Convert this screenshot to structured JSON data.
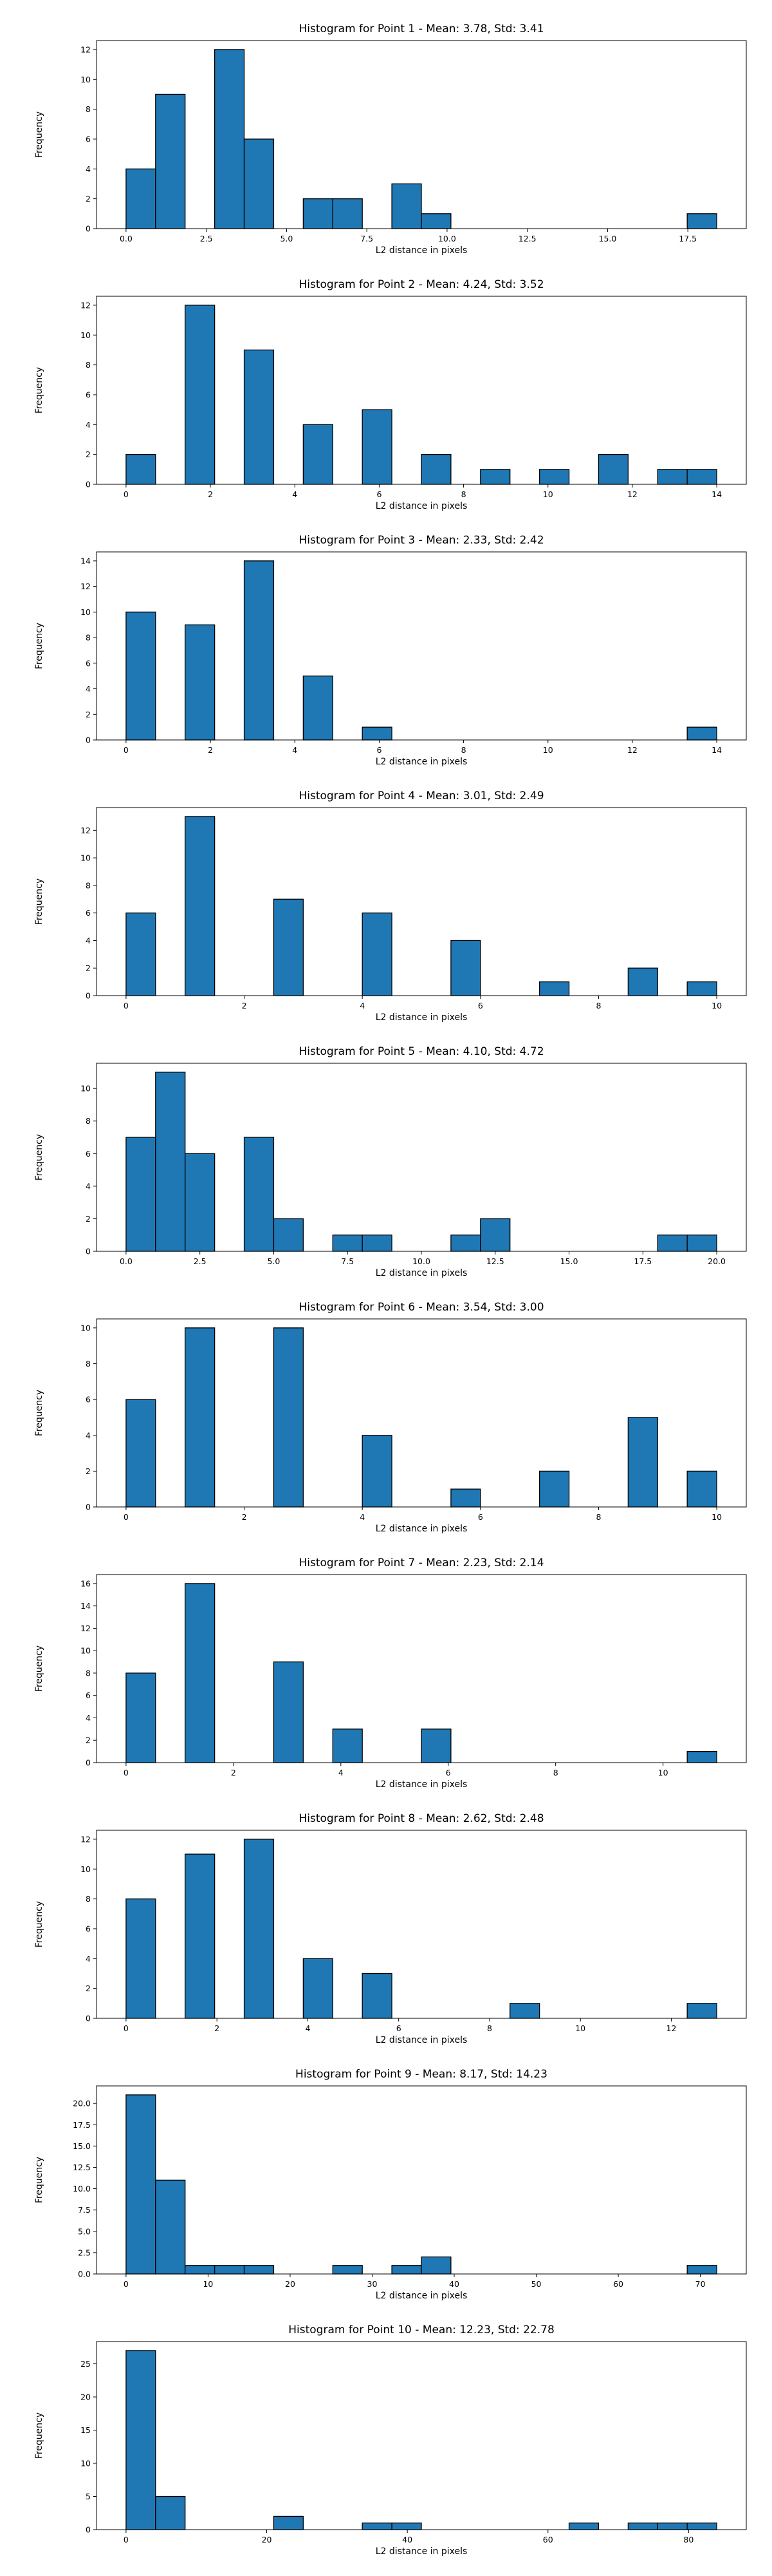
{
  "chart_data": [
    {
      "type": "bar",
      "title": "Histogram for Point 1 - Mean: 3.78, Std: 3.41",
      "xlabel": "L2 distance in pixels",
      "ylabel": "Frequency",
      "bin_edges": [
        0.0,
        0.92,
        1.84,
        2.76,
        3.68,
        4.6,
        5.52,
        6.44,
        7.36,
        8.28,
        9.2,
        10.12,
        11.04,
        11.96,
        12.88,
        13.8,
        14.72,
        15.64,
        16.56,
        17.48,
        18.4
      ],
      "values": [
        4,
        9,
        0,
        12,
        6,
        0,
        2,
        2,
        0,
        3,
        1,
        0,
        0,
        0,
        0,
        0,
        0,
        0,
        0,
        1
      ],
      "xlim": [
        -0.92,
        19.32
      ],
      "ylim": [
        0,
        12.6
      ],
      "xticks": [
        0,
        2.5,
        5,
        7.5,
        10,
        12.5,
        15,
        17.5
      ],
      "xtick_labels": [
        "0.0",
        "2.5",
        "5.0",
        "7.5",
        "10.0",
        "12.5",
        "15.0",
        "17.5"
      ],
      "yticks": [
        0,
        2,
        4,
        6,
        8,
        10,
        12
      ],
      "ytick_labels": [
        "0",
        "2",
        "4",
        "6",
        "8",
        "10",
        "12"
      ],
      "bar_color": "#1f77b4",
      "edge_color": "#000000",
      "grid": false,
      "legend": "none"
    },
    {
      "type": "bar",
      "title": "Histogram for Point 2 - Mean: 4.24, Std: 3.52",
      "xlabel": "L2 distance in pixels",
      "ylabel": "Frequency",
      "bin_edges": [
        0.0,
        0.7,
        1.4,
        2.1,
        2.8,
        3.5,
        4.2,
        4.9,
        5.6,
        6.3,
        7.0,
        7.7,
        8.4,
        9.1,
        9.8,
        10.5,
        11.2,
        11.9,
        12.6,
        13.3,
        14.0
      ],
      "values": [
        2,
        0,
        12,
        0,
        9,
        0,
        4,
        0,
        5,
        0,
        2,
        0,
        1,
        0,
        1,
        0,
        2,
        0,
        1,
        1
      ],
      "xlim": [
        -0.7,
        14.7
      ],
      "ylim": [
        0,
        12.6
      ],
      "xticks": [
        0,
        2,
        4,
        6,
        8,
        10,
        12,
        14
      ],
      "xtick_labels": [
        "0",
        "2",
        "4",
        "6",
        "8",
        "10",
        "12",
        "14"
      ],
      "yticks": [
        0,
        2,
        4,
        6,
        8,
        10,
        12
      ],
      "ytick_labels": [
        "0",
        "2",
        "4",
        "6",
        "8",
        "10",
        "12"
      ],
      "bar_color": "#1f77b4",
      "edge_color": "#000000",
      "grid": false,
      "legend": "none"
    },
    {
      "type": "bar",
      "title": "Histogram for Point 3 - Mean: 2.33, Std: 2.42",
      "xlabel": "L2 distance in pixels",
      "ylabel": "Frequency",
      "bin_edges": [
        0.0,
        0.7,
        1.4,
        2.1,
        2.8,
        3.5,
        4.2,
        4.9,
        5.6,
        6.3,
        7.0,
        7.7,
        8.4,
        9.1,
        9.8,
        10.5,
        11.2,
        11.9,
        12.6,
        13.3,
        14.0
      ],
      "values": [
        10,
        0,
        9,
        0,
        14,
        0,
        5,
        0,
        1,
        0,
        0,
        0,
        0,
        0,
        0,
        0,
        0,
        0,
        0,
        1
      ],
      "xlim": [
        -0.7,
        14.7
      ],
      "ylim": [
        0,
        14.7
      ],
      "xticks": [
        0,
        2,
        4,
        6,
        8,
        10,
        12,
        14
      ],
      "xtick_labels": [
        "0",
        "2",
        "4",
        "6",
        "8",
        "10",
        "12",
        "14"
      ],
      "yticks": [
        0,
        2,
        4,
        6,
        8,
        10,
        12,
        14
      ],
      "ytick_labels": [
        "0",
        "2",
        "4",
        "6",
        "8",
        "10",
        "12",
        "14"
      ],
      "bar_color": "#1f77b4",
      "edge_color": "#000000",
      "grid": false,
      "legend": "none"
    },
    {
      "type": "bar",
      "title": "Histogram for Point 4 - Mean: 3.01, Std: 2.49",
      "xlabel": "L2 distance in pixels",
      "ylabel": "Frequency",
      "bin_edges": [
        0.0,
        0.5,
        1.0,
        1.5,
        2.0,
        2.5,
        3.0,
        3.5,
        4.0,
        4.5,
        5.0,
        5.5,
        6.0,
        6.5,
        7.0,
        7.5,
        8.0,
        8.5,
        9.0,
        9.5,
        10.0
      ],
      "values": [
        6,
        0,
        13,
        0,
        0,
        7,
        0,
        0,
        6,
        0,
        0,
        4,
        0,
        0,
        1,
        0,
        0,
        2,
        0,
        1
      ],
      "xlim": [
        -0.5,
        10.5
      ],
      "ylim": [
        0,
        13.65
      ],
      "xticks": [
        0,
        2,
        4,
        6,
        8,
        10
      ],
      "xtick_labels": [
        "0",
        "2",
        "4",
        "6",
        "8",
        "10"
      ],
      "yticks": [
        0,
        2,
        4,
        6,
        8,
        10,
        12
      ],
      "ytick_labels": [
        "0",
        "2",
        "4",
        "6",
        "8",
        "10",
        "12"
      ],
      "bar_color": "#1f77b4",
      "edge_color": "#000000",
      "grid": false,
      "legend": "none"
    },
    {
      "type": "bar",
      "title": "Histogram for Point 5 - Mean: 4.10, Std: 4.72",
      "xlabel": "L2 distance in pixels",
      "ylabel": "Frequency",
      "bin_edges": [
        0.0,
        1.0,
        2.0,
        3.0,
        4.0,
        5.0,
        6.0,
        7.0,
        8.0,
        9.0,
        10.0,
        11.0,
        12.0,
        13.0,
        14.0,
        15.0,
        16.0,
        17.0,
        18.0,
        19.0,
        20.0
      ],
      "values": [
        7,
        11,
        6,
        0,
        7,
        2,
        0,
        1,
        1,
        0,
        0,
        1,
        2,
        0,
        0,
        0,
        0,
        0,
        1,
        1
      ],
      "xlim": [
        -1.0,
        21.0
      ],
      "ylim": [
        0,
        11.55
      ],
      "xticks": [
        0,
        2.5,
        5,
        7.5,
        10,
        12.5,
        15,
        17.5,
        20
      ],
      "xtick_labels": [
        "0.0",
        "2.5",
        "5.0",
        "7.5",
        "10.0",
        "12.5",
        "15.0",
        "17.5",
        "20.0"
      ],
      "yticks": [
        0,
        2,
        4,
        6,
        8,
        10
      ],
      "ytick_labels": [
        "0",
        "2",
        "4",
        "6",
        "8",
        "10"
      ],
      "bar_color": "#1f77b4",
      "edge_color": "#000000",
      "grid": false,
      "legend": "none"
    },
    {
      "type": "bar",
      "title": "Histogram for Point 6 - Mean: 3.54, Std: 3.00",
      "xlabel": "L2 distance in pixels",
      "ylabel": "Frequency",
      "bin_edges": [
        0.0,
        0.5,
        1.0,
        1.5,
        2.0,
        2.5,
        3.0,
        3.5,
        4.0,
        4.5,
        5.0,
        5.5,
        6.0,
        6.5,
        7.0,
        7.5,
        8.0,
        8.5,
        9.0,
        9.5,
        10.0
      ],
      "values": [
        6,
        0,
        10,
        0,
        0,
        10,
        0,
        0,
        4,
        0,
        0,
        1,
        0,
        0,
        2,
        0,
        0,
        5,
        0,
        2
      ],
      "xlim": [
        -0.5,
        10.5
      ],
      "ylim": [
        0,
        10.5
      ],
      "xticks": [
        0,
        2,
        4,
        6,
        8,
        10
      ],
      "xtick_labels": [
        "0",
        "2",
        "4",
        "6",
        "8",
        "10"
      ],
      "yticks": [
        0,
        2,
        4,
        6,
        8,
        10
      ],
      "ytick_labels": [
        "0",
        "2",
        "4",
        "6",
        "8",
        "10"
      ],
      "bar_color": "#1f77b4",
      "edge_color": "#000000",
      "grid": false,
      "legend": "none"
    },
    {
      "type": "bar",
      "title": "Histogram for Point 7 - Mean: 2.23, Std: 2.14",
      "xlabel": "L2 distance in pixels",
      "ylabel": "Frequency",
      "bin_edges": [
        0.0,
        0.55,
        1.1,
        1.65,
        2.2,
        2.75,
        3.3,
        3.85,
        4.4,
        4.95,
        5.5,
        6.05,
        6.6,
        7.15,
        7.7,
        8.25,
        8.8,
        9.35,
        9.9,
        10.45,
        11.0
      ],
      "values": [
        8,
        0,
        16,
        0,
        0,
        9,
        0,
        3,
        0,
        0,
        3,
        0,
        0,
        0,
        0,
        0,
        0,
        0,
        0,
        1
      ],
      "xlim": [
        -0.55,
        11.55
      ],
      "ylim": [
        0,
        16.8
      ],
      "xticks": [
        0,
        2,
        4,
        6,
        8,
        10
      ],
      "xtick_labels": [
        "0",
        "2",
        "4",
        "6",
        "8",
        "10"
      ],
      "yticks": [
        0,
        2,
        4,
        6,
        8,
        10,
        12,
        14,
        16
      ],
      "ytick_labels": [
        "0",
        "2",
        "4",
        "6",
        "8",
        "10",
        "12",
        "14",
        "16"
      ],
      "bar_color": "#1f77b4",
      "edge_color": "#000000",
      "grid": false,
      "legend": "none"
    },
    {
      "type": "bar",
      "title": "Histogram for Point 8 - Mean: 2.62, Std: 2.48",
      "xlabel": "L2 distance in pixels",
      "ylabel": "Frequency",
      "bin_edges": [
        0.0,
        0.65,
        1.3,
        1.95,
        2.6,
        3.25,
        3.9,
        4.55,
        5.2,
        5.85,
        6.5,
        7.15,
        7.8,
        8.45,
        9.1,
        9.75,
        10.4,
        11.05,
        11.7,
        12.35,
        13.0
      ],
      "values": [
        8,
        0,
        11,
        0,
        12,
        0,
        4,
        0,
        3,
        0,
        0,
        0,
        0,
        1,
        0,
        0,
        0,
        0,
        0,
        1
      ],
      "xlim": [
        -0.65,
        13.65
      ],
      "ylim": [
        0,
        12.6
      ],
      "xticks": [
        0,
        2,
        4,
        6,
        8,
        10,
        12
      ],
      "xtick_labels": [
        "0",
        "2",
        "4",
        "6",
        "8",
        "10",
        "12"
      ],
      "yticks": [
        0,
        2,
        4,
        6,
        8,
        10,
        12
      ],
      "ytick_labels": [
        "0",
        "2",
        "4",
        "6",
        "8",
        "10",
        "12"
      ],
      "bar_color": "#1f77b4",
      "edge_color": "#000000",
      "grid": false,
      "legend": "none"
    },
    {
      "type": "bar",
      "title": "Histogram for Point 9 - Mean: 8.17, Std: 14.23",
      "xlabel": "L2 distance in pixels",
      "ylabel": "Frequency",
      "bin_edges": [
        0.0,
        3.6,
        7.2,
        10.8,
        14.4,
        18.0,
        21.6,
        25.2,
        28.8,
        32.4,
        36.0,
        39.6,
        43.2,
        46.8,
        50.4,
        54.0,
        57.6,
        61.2,
        64.8,
        68.4,
        72.0
      ],
      "values": [
        21,
        11,
        1,
        1,
        1,
        0,
        0,
        1,
        0,
        1,
        2,
        0,
        0,
        0,
        0,
        0,
        0,
        0,
        0,
        1
      ],
      "xlim": [
        -3.6,
        75.6
      ],
      "ylim": [
        0,
        22.05
      ],
      "xticks": [
        0,
        10,
        20,
        30,
        40,
        50,
        60,
        70
      ],
      "xtick_labels": [
        "0",
        "10",
        "20",
        "30",
        "40",
        "50",
        "60",
        "70"
      ],
      "yticks": [
        0,
        2.5,
        5,
        7.5,
        10,
        12.5,
        15,
        17.5,
        20
      ],
      "ytick_labels": [
        "0.0",
        "2.5",
        "5.0",
        "7.5",
        "10.0",
        "12.5",
        "15.0",
        "17.5",
        "20.0"
      ],
      "bar_color": "#1f77b4",
      "edge_color": "#000000",
      "grid": false,
      "legend": "none"
    },
    {
      "type": "bar",
      "title": "Histogram for Point 10 - Mean: 12.23, Std: 22.78",
      "xlabel": "L2 distance in pixels",
      "ylabel": "Frequency",
      "bin_edges": [
        0.0,
        4.2,
        8.4,
        12.6,
        16.8,
        21.0,
        25.2,
        29.4,
        33.6,
        37.8,
        42.0,
        46.2,
        50.4,
        54.6,
        58.8,
        63.0,
        67.2,
        71.4,
        75.6,
        79.8,
        84.0
      ],
      "values": [
        27,
        5,
        0,
        0,
        0,
        2,
        0,
        0,
        1,
        1,
        0,
        0,
        0,
        0,
        0,
        1,
        0,
        1,
        1,
        1
      ],
      "xlim": [
        -4.2,
        88.2
      ],
      "ylim": [
        0,
        28.35
      ],
      "xticks": [
        0,
        20,
        40,
        60,
        80
      ],
      "xtick_labels": [
        "0",
        "20",
        "40",
        "60",
        "80"
      ],
      "yticks": [
        0,
        5,
        10,
        15,
        20,
        25
      ],
      "ytick_labels": [
        "0",
        "5",
        "10",
        "15",
        "20",
        "25"
      ],
      "bar_color": "#1f77b4",
      "edge_color": "#000000",
      "grid": false,
      "legend": "none"
    }
  ]
}
